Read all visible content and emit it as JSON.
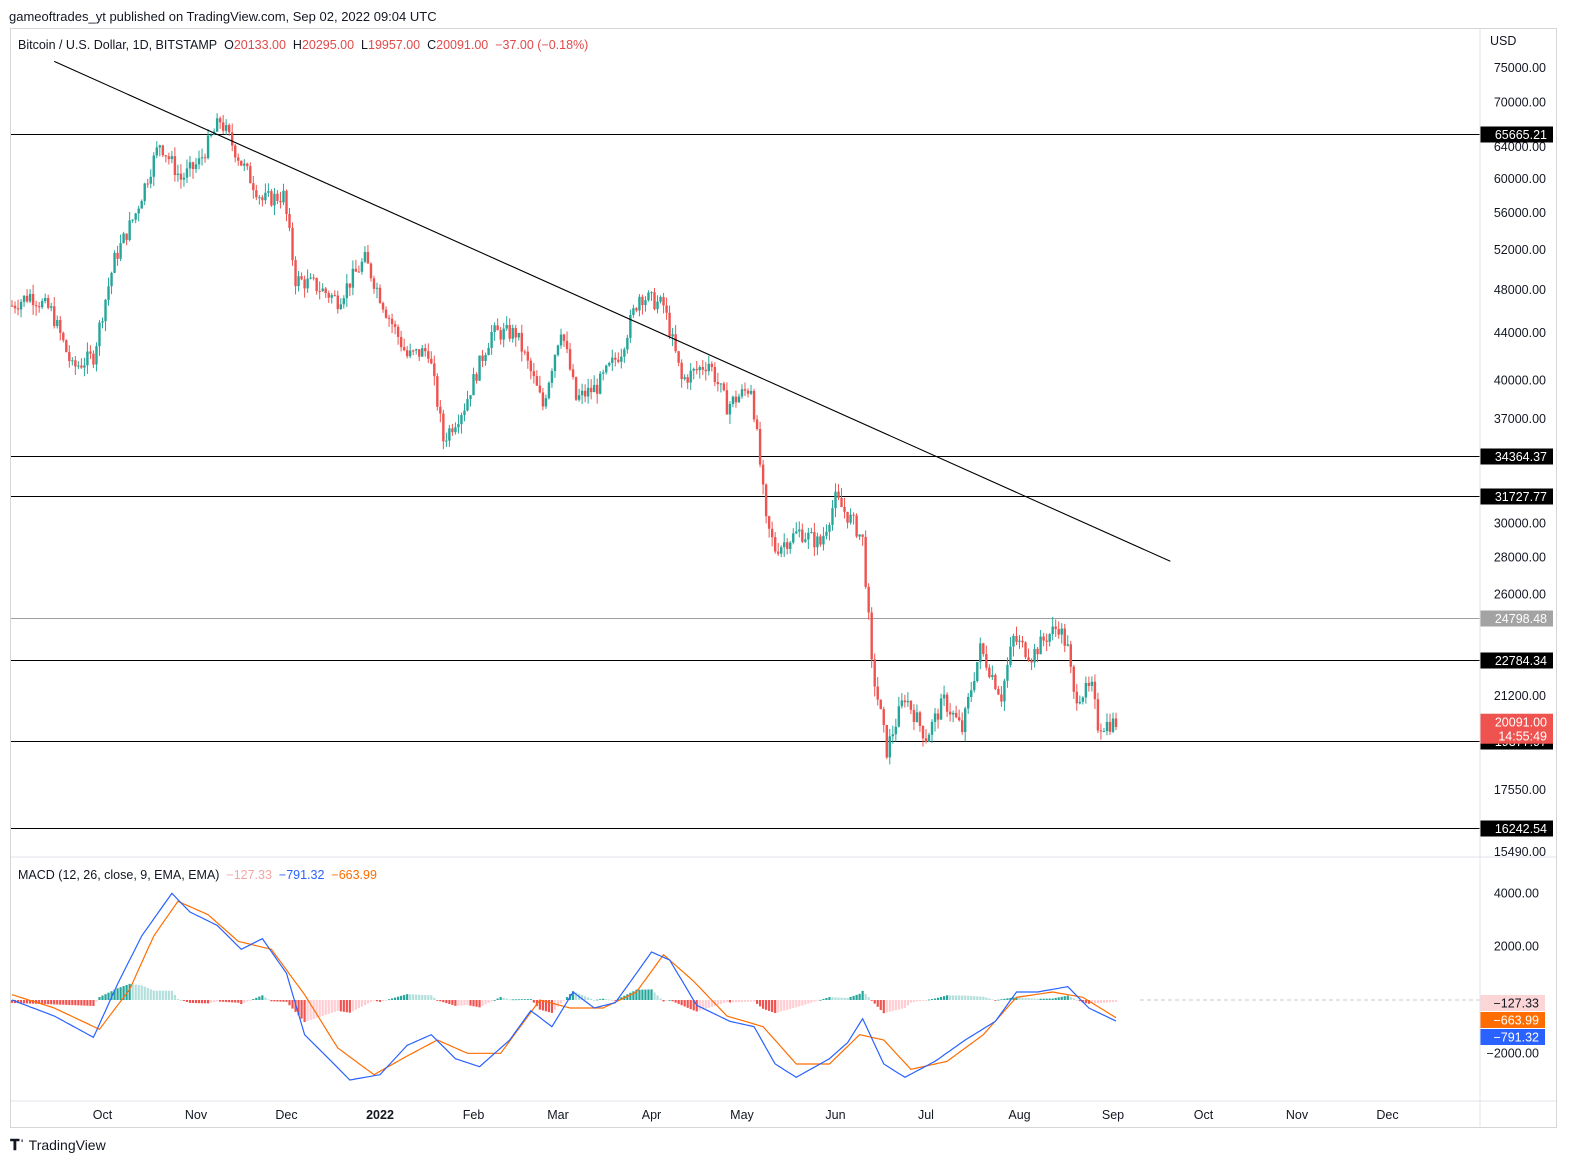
{
  "header": {
    "text": "gameoftrades_yt published on TradingView.com, Sep 02, 2022 09:04 UTC"
  },
  "legend": {
    "symbol": "Bitcoin / U.S. Dollar, 1D, BITSTAMP",
    "o_label": "O",
    "o_value": "20133.00",
    "h_label": "H",
    "h_value": "20295.00",
    "l_label": "L",
    "l_value": "19957.00",
    "c_label": "C",
    "c_value": "20091.00",
    "change": "−37.00 (−0.18%)"
  },
  "macd_legend": {
    "label": "MACD (12, 26, close, 9, EMA, EMA)",
    "hist": "−127.33",
    "macd": "−791.32",
    "signal": "−663.99"
  },
  "footer": {
    "brand": "TradingView"
  },
  "colors": {
    "up": "#26a69a",
    "down": "#ef5350",
    "macd": "#2962ff",
    "signal": "#ff6d00",
    "hist_neg_light": "#ffcdd2",
    "hist_pos_light": "#b2dfdb",
    "price_tag": "#ef5350"
  },
  "chart_data": [
    {
      "type": "candlestick",
      "symbol": "Bitcoin / U.S. Dollar",
      "interval": "1D",
      "exchange": "BITSTAMP",
      "currency": "USD",
      "scale": "log",
      "ylim": [
        15490,
        78000
      ],
      "x_ticks": [
        "Oct",
        "Nov",
        "Dec",
        "2022",
        "Feb",
        "Mar",
        "Apr",
        "May",
        "Jun",
        "Jul",
        "Aug",
        "Sep",
        "Oct",
        "Nov",
        "Dec"
      ],
      "y_ticks": [
        "75000.00",
        "70000.00",
        "64000.00",
        "60000.00",
        "56000.00",
        "52000.00",
        "48000.00",
        "44000.00",
        "40000.00",
        "37000.00",
        "30000.00",
        "28000.00",
        "26000.00",
        "21200.00",
        "17550.00",
        "15490.00"
      ],
      "horizontal_levels": [
        {
          "value": 65665.21,
          "label": "65665.21",
          "style": "dark"
        },
        {
          "value": 34364.37,
          "label": "34364.37",
          "style": "dark"
        },
        {
          "value": 31727.77,
          "label": "31727.77",
          "style": "dark"
        },
        {
          "value": 24798.48,
          "label": "24798.48",
          "style": "gray"
        },
        {
          "value": 22784.34,
          "label": "22784.34",
          "style": "dark"
        },
        {
          "value": 19377.97,
          "label": "19377.97",
          "style": "dark"
        },
        {
          "value": 16242.54,
          "label": "16242.54",
          "style": "dark"
        }
      ],
      "last_price": {
        "value": 20091.0,
        "label": "20091.00",
        "countdown": "14:55:49"
      },
      "trendline": [
        {
          "date": "2021-09-15",
          "price": 76000
        },
        {
          "date": "2022-09-20",
          "price": 27800
        }
      ],
      "price_path": [
        {
          "date": "2021-09-01",
          "close": 46500
        },
        {
          "date": "2021-09-07",
          "close": 47500
        },
        {
          "date": "2021-09-14",
          "close": 46000
        },
        {
          "date": "2021-09-21",
          "close": 41000
        },
        {
          "date": "2021-09-28",
          "close": 42000
        },
        {
          "date": "2021-10-05",
          "close": 51000
        },
        {
          "date": "2021-10-12",
          "close": 56000
        },
        {
          "date": "2021-10-20",
          "close": 64500
        },
        {
          "date": "2021-10-27",
          "close": 60000
        },
        {
          "date": "2021-11-02",
          "close": 62000
        },
        {
          "date": "2021-11-09",
          "close": 67500
        },
        {
          "date": "2021-11-16",
          "close": 62000
        },
        {
          "date": "2021-11-23",
          "close": 57500
        },
        {
          "date": "2021-11-30",
          "close": 58000
        },
        {
          "date": "2021-12-04",
          "close": 49000
        },
        {
          "date": "2021-12-10",
          "close": 48500
        },
        {
          "date": "2021-12-18",
          "close": 47000
        },
        {
          "date": "2021-12-27",
          "close": 51000
        },
        {
          "date": "2022-01-03",
          "close": 46000
        },
        {
          "date": "2022-01-10",
          "close": 42000
        },
        {
          "date": "2022-01-17",
          "close": 42500
        },
        {
          "date": "2022-01-22",
          "close": 35500
        },
        {
          "date": "2022-01-29",
          "close": 38000
        },
        {
          "date": "2022-02-07",
          "close": 44000
        },
        {
          "date": "2022-02-15",
          "close": 44000
        },
        {
          "date": "2022-02-24",
          "close": 38000
        },
        {
          "date": "2022-03-02",
          "close": 44500
        },
        {
          "date": "2022-03-07",
          "close": 38500
        },
        {
          "date": "2022-03-14",
          "close": 39500
        },
        {
          "date": "2022-03-22",
          "close": 42500
        },
        {
          "date": "2022-03-28",
          "close": 47500
        },
        {
          "date": "2022-04-05",
          "close": 46500
        },
        {
          "date": "2022-04-11",
          "close": 40000
        },
        {
          "date": "2022-04-20",
          "close": 41500
        },
        {
          "date": "2022-04-26",
          "close": 38000
        },
        {
          "date": "2022-05-04",
          "close": 39500
        },
        {
          "date": "2022-05-09",
          "close": 30000
        },
        {
          "date": "2022-05-12",
          "close": 28500
        },
        {
          "date": "2022-05-20",
          "close": 29500
        },
        {
          "date": "2022-05-27",
          "close": 28800
        },
        {
          "date": "2022-06-01",
          "close": 31500
        },
        {
          "date": "2022-06-07",
          "close": 30000
        },
        {
          "date": "2022-06-10",
          "close": 29000
        },
        {
          "date": "2022-06-13",
          "close": 22500
        },
        {
          "date": "2022-06-18",
          "close": 19000
        },
        {
          "date": "2022-06-24",
          "close": 21200
        },
        {
          "date": "2022-07-01",
          "close": 19500
        },
        {
          "date": "2022-07-07",
          "close": 21000
        },
        {
          "date": "2022-07-13",
          "close": 19800
        },
        {
          "date": "2022-07-19",
          "close": 23300
        },
        {
          "date": "2022-07-26",
          "close": 21200
        },
        {
          "date": "2022-07-30",
          "close": 23800
        },
        {
          "date": "2022-08-05",
          "close": 23000
        },
        {
          "date": "2022-08-10",
          "close": 23900
        },
        {
          "date": "2022-08-14",
          "close": 24400
        },
        {
          "date": "2022-08-17",
          "close": 23300
        },
        {
          "date": "2022-08-19",
          "close": 21200
        },
        {
          "date": "2022-08-25",
          "close": 21500
        },
        {
          "date": "2022-08-27",
          "close": 20000
        },
        {
          "date": "2022-09-02",
          "close": 20091
        }
      ]
    },
    {
      "type": "line",
      "title": "MACD (12, 26, close, 9, EMA, EMA)",
      "ylim": [
        -3500,
        5000
      ],
      "y_ticks": [
        "4000.00",
        "2000.00",
        "−2000.00"
      ],
      "current": {
        "histogram": -127.33,
        "macd": -791.32,
        "signal": -663.99
      },
      "series": [
        {
          "name": "MACD",
          "points": [
            {
              "date": "2021-09-01",
              "value": 0
            },
            {
              "date": "2021-09-15",
              "value": -600
            },
            {
              "date": "2021-09-28",
              "value": -1400
            },
            {
              "date": "2021-10-06",
              "value": 600
            },
            {
              "date": "2021-10-14",
              "value": 2400
            },
            {
              "date": "2021-10-24",
              "value": 4000
            },
            {
              "date": "2021-10-30",
              "value": 3300
            },
            {
              "date": "2021-11-08",
              "value": 2800
            },
            {
              "date": "2021-11-16",
              "value": 1900
            },
            {
              "date": "2021-11-23",
              "value": 2300
            },
            {
              "date": "2021-12-01",
              "value": 1000
            },
            {
              "date": "2021-12-07",
              "value": -1300
            },
            {
              "date": "2021-12-15",
              "value": -2200
            },
            {
              "date": "2021-12-22",
              "value": -3000
            },
            {
              "date": "2022-01-01",
              "value": -2800
            },
            {
              "date": "2022-01-10",
              "value": -1700
            },
            {
              "date": "2022-01-18",
              "value": -1300
            },
            {
              "date": "2022-01-26",
              "value": -2200
            },
            {
              "date": "2022-02-03",
              "value": -2500
            },
            {
              "date": "2022-02-13",
              "value": -1500
            },
            {
              "date": "2022-02-20",
              "value": -400
            },
            {
              "date": "2022-02-27",
              "value": -1000
            },
            {
              "date": "2022-03-06",
              "value": 300
            },
            {
              "date": "2022-03-13",
              "value": -300
            },
            {
              "date": "2022-03-20",
              "value": -100
            },
            {
              "date": "2022-03-27",
              "value": 1000
            },
            {
              "date": "2022-04-01",
              "value": 1800
            },
            {
              "date": "2022-04-07",
              "value": 1500
            },
            {
              "date": "2022-04-16",
              "value": -200
            },
            {
              "date": "2022-04-27",
              "value": -800
            },
            {
              "date": "2022-05-05",
              "value": -1000
            },
            {
              "date": "2022-05-12",
              "value": -2400
            },
            {
              "date": "2022-05-19",
              "value": -2900
            },
            {
              "date": "2022-05-30",
              "value": -2200
            },
            {
              "date": "2022-06-05",
              "value": -1600
            },
            {
              "date": "2022-06-10",
              "value": -700
            },
            {
              "date": "2022-06-17",
              "value": -2400
            },
            {
              "date": "2022-06-24",
              "value": -2900
            },
            {
              "date": "2022-07-04",
              "value": -2300
            },
            {
              "date": "2022-07-14",
              "value": -1500
            },
            {
              "date": "2022-07-24",
              "value": -800
            },
            {
              "date": "2022-07-31",
              "value": 300
            },
            {
              "date": "2022-08-07",
              "value": 300
            },
            {
              "date": "2022-08-17",
              "value": 500
            },
            {
              "date": "2022-08-24",
              "value": -300
            },
            {
              "date": "2022-09-02",
              "value": -791.32
            }
          ]
        },
        {
          "name": "Signal",
          "points": [
            {
              "date": "2021-09-01",
              "value": 200
            },
            {
              "date": "2021-09-15",
              "value": -300
            },
            {
              "date": "2021-09-30",
              "value": -1100
            },
            {
              "date": "2021-10-10",
              "value": 400
            },
            {
              "date": "2021-10-18",
              "value": 2400
            },
            {
              "date": "2021-10-26",
              "value": 3700
            },
            {
              "date": "2021-11-05",
              "value": 3200
            },
            {
              "date": "2021-11-15",
              "value": 2200
            },
            {
              "date": "2021-11-26",
              "value": 1900
            },
            {
              "date": "2021-12-07",
              "value": 200
            },
            {
              "date": "2021-12-18",
              "value": -1800
            },
            {
              "date": "2021-12-30",
              "value": -2800
            },
            {
              "date": "2022-01-10",
              "value": -2100
            },
            {
              "date": "2022-01-20",
              "value": -1500
            },
            {
              "date": "2022-01-30",
              "value": -2000
            },
            {
              "date": "2022-02-10",
              "value": -2000
            },
            {
              "date": "2022-02-23",
              "value": 0
            },
            {
              "date": "2022-03-05",
              "value": -300
            },
            {
              "date": "2022-03-16",
              "value": -300
            },
            {
              "date": "2022-03-27",
              "value": 300
            },
            {
              "date": "2022-04-05",
              "value": 1700
            },
            {
              "date": "2022-04-15",
              "value": 700
            },
            {
              "date": "2022-04-26",
              "value": -600
            },
            {
              "date": "2022-05-08",
              "value": -1000
            },
            {
              "date": "2022-05-19",
              "value": -2400
            },
            {
              "date": "2022-05-30",
              "value": -2400
            },
            {
              "date": "2022-06-09",
              "value": -1300
            },
            {
              "date": "2022-06-17",
              "value": -1500
            },
            {
              "date": "2022-06-26",
              "value": -2600
            },
            {
              "date": "2022-07-08",
              "value": -2300
            },
            {
              "date": "2022-07-20",
              "value": -1300
            },
            {
              "date": "2022-07-31",
              "value": 100
            },
            {
              "date": "2022-08-12",
              "value": 300
            },
            {
              "date": "2022-08-22",
              "value": 100
            },
            {
              "date": "2022-09-02",
              "value": -663.99
            }
          ]
        }
      ]
    }
  ]
}
